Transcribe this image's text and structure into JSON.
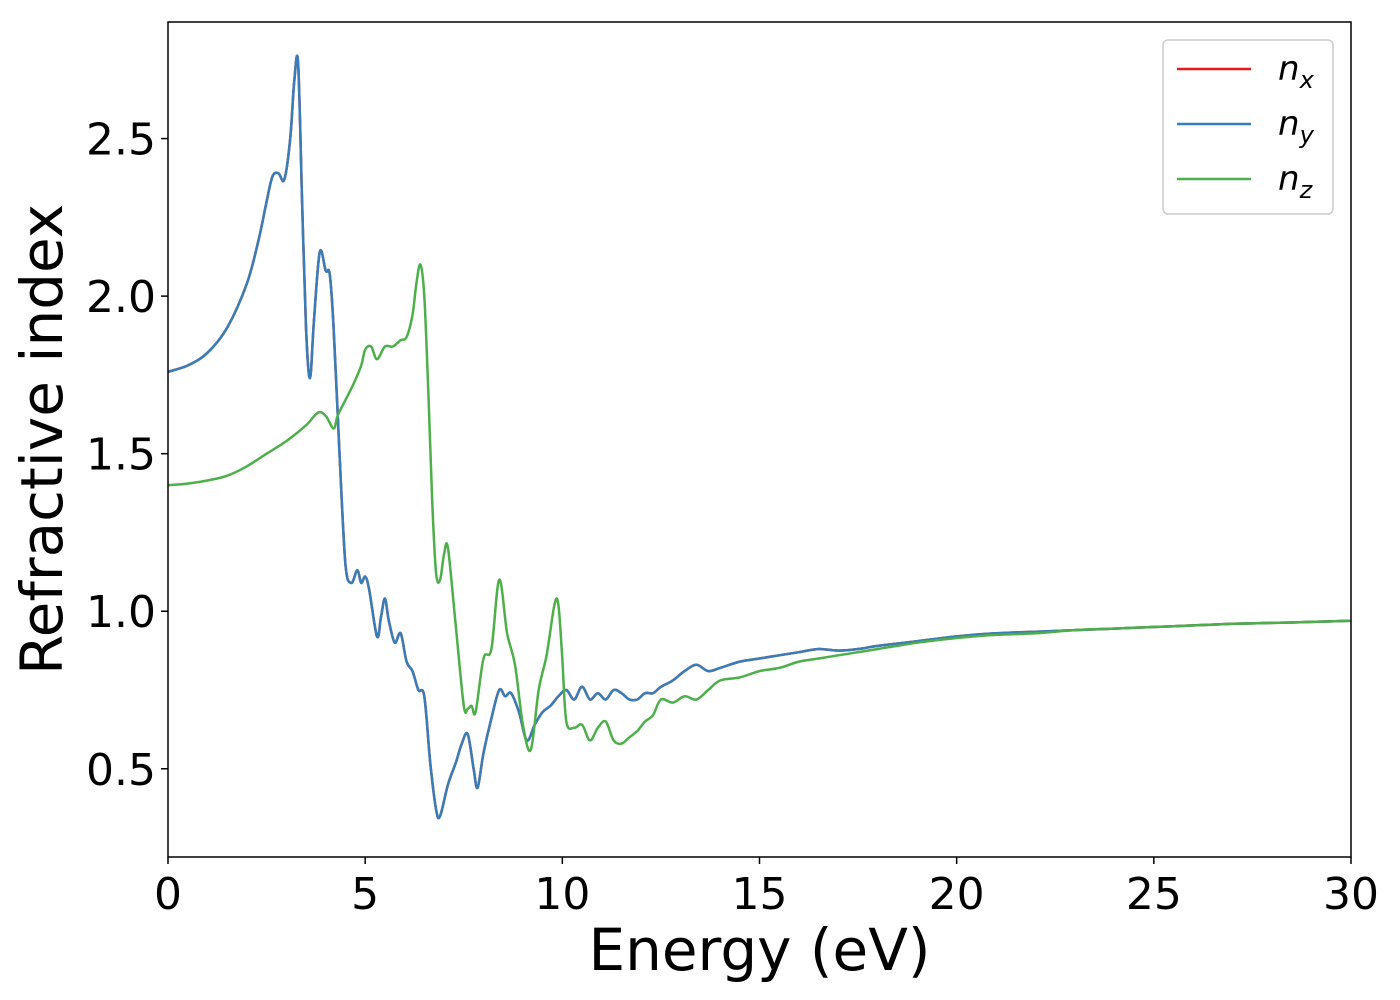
{
  "chart_data": {
    "type": "line",
    "title": "",
    "xlabel": "Energy (eV)",
    "ylabel": "Refractive index",
    "xlim": [
      0,
      30
    ],
    "ylim": [
      0.22,
      2.87
    ],
    "xticks": [
      0,
      5,
      10,
      15,
      20,
      25,
      30
    ],
    "xtick_labels": [
      "0",
      "5",
      "10",
      "15",
      "20",
      "25",
      "30"
    ],
    "yticks": [
      0.5,
      1.0,
      1.5,
      2.0,
      2.5
    ],
    "ytick_labels": [
      "0.5",
      "1.0",
      "1.5",
      "2.0",
      "2.5"
    ],
    "grid": false,
    "legend": {
      "placement": "top-right",
      "entries": [
        {
          "base": "n",
          "sub": "x",
          "color": "#e41a1c"
        },
        {
          "base": "n",
          "sub": "y",
          "color": "#377eb8"
        },
        {
          "base": "n",
          "sub": "z",
          "color": "#4daf4a"
        }
      ]
    },
    "series": [
      {
        "color": "#e41a1c",
        "x": [
          0,
          0.5,
          1.0,
          1.5,
          2.0,
          2.3,
          2.5,
          2.65,
          2.8,
          2.95,
          3.1,
          3.2,
          3.3,
          3.4,
          3.5,
          3.6,
          3.7,
          3.85,
          4.0,
          4.1,
          4.2,
          4.35,
          4.5,
          4.65,
          4.8,
          4.9,
          5.0,
          5.1,
          5.3,
          5.4,
          5.5,
          5.6,
          5.75,
          5.9,
          6.05,
          6.2,
          6.35,
          6.5,
          6.65,
          6.8,
          6.9,
          7.1,
          7.3,
          7.45,
          7.6,
          7.75,
          7.85,
          8.0,
          8.2,
          8.4,
          8.55,
          8.7,
          8.9,
          9.1,
          9.3,
          9.5,
          9.7,
          9.9,
          10.1,
          10.3,
          10.5,
          10.7,
          10.9,
          11.1,
          11.3,
          11.5,
          11.7,
          11.9,
          12.1,
          12.3,
          12.5,
          12.8,
          13.1,
          13.4,
          13.7,
          14.0,
          14.5,
          15.0,
          15.5,
          16.0,
          16.5,
          17.0,
          17.5,
          18.0,
          19.0,
          20.0,
          21.0,
          22.0,
          23.0,
          24.0,
          25.0,
          26.0,
          27.0,
          28.0,
          29.0,
          30.0
        ],
        "y": [
          1.76,
          1.78,
          1.82,
          1.9,
          2.04,
          2.18,
          2.3,
          2.38,
          2.39,
          2.37,
          2.5,
          2.68,
          2.74,
          2.3,
          1.9,
          1.74,
          1.92,
          2.14,
          2.08,
          2.07,
          1.9,
          1.5,
          1.15,
          1.09,
          1.13,
          1.09,
          1.11,
          1.07,
          0.92,
          0.98,
          1.04,
          0.97,
          0.9,
          0.93,
          0.84,
          0.81,
          0.75,
          0.73,
          0.52,
          0.37,
          0.35,
          0.45,
          0.52,
          0.58,
          0.61,
          0.5,
          0.44,
          0.55,
          0.66,
          0.75,
          0.73,
          0.74,
          0.68,
          0.59,
          0.64,
          0.68,
          0.7,
          0.73,
          0.75,
          0.72,
          0.76,
          0.72,
          0.74,
          0.72,
          0.75,
          0.74,
          0.72,
          0.72,
          0.74,
          0.74,
          0.76,
          0.78,
          0.81,
          0.83,
          0.81,
          0.82,
          0.84,
          0.85,
          0.86,
          0.87,
          0.88,
          0.875,
          0.88,
          0.89,
          0.905,
          0.92,
          0.93,
          0.935,
          0.94,
          0.945,
          0.95,
          0.955,
          0.96,
          0.963,
          0.966,
          0.97
        ]
      },
      {
        "color": "#377eb8",
        "x": [
          0,
          0.5,
          1.0,
          1.5,
          2.0,
          2.3,
          2.5,
          2.65,
          2.8,
          2.95,
          3.1,
          3.2,
          3.3,
          3.4,
          3.5,
          3.6,
          3.7,
          3.85,
          4.0,
          4.1,
          4.2,
          4.35,
          4.5,
          4.65,
          4.8,
          4.9,
          5.0,
          5.1,
          5.3,
          5.4,
          5.5,
          5.6,
          5.75,
          5.9,
          6.05,
          6.2,
          6.35,
          6.5,
          6.65,
          6.8,
          6.9,
          7.1,
          7.3,
          7.45,
          7.6,
          7.75,
          7.85,
          8.0,
          8.2,
          8.4,
          8.55,
          8.7,
          8.9,
          9.1,
          9.3,
          9.5,
          9.7,
          9.9,
          10.1,
          10.3,
          10.5,
          10.7,
          10.9,
          11.1,
          11.3,
          11.5,
          11.7,
          11.9,
          12.1,
          12.3,
          12.5,
          12.8,
          13.1,
          13.4,
          13.7,
          14.0,
          14.5,
          15.0,
          15.5,
          16.0,
          16.5,
          17.0,
          17.5,
          18.0,
          19.0,
          20.0,
          21.0,
          22.0,
          23.0,
          24.0,
          25.0,
          26.0,
          27.0,
          28.0,
          29.0,
          30.0
        ],
        "y": [
          1.76,
          1.78,
          1.82,
          1.9,
          2.04,
          2.18,
          2.3,
          2.38,
          2.39,
          2.37,
          2.5,
          2.68,
          2.74,
          2.3,
          1.9,
          1.74,
          1.92,
          2.14,
          2.08,
          2.07,
          1.9,
          1.5,
          1.15,
          1.09,
          1.13,
          1.09,
          1.11,
          1.07,
          0.92,
          0.98,
          1.04,
          0.97,
          0.9,
          0.93,
          0.84,
          0.81,
          0.75,
          0.73,
          0.52,
          0.37,
          0.35,
          0.45,
          0.52,
          0.58,
          0.61,
          0.5,
          0.44,
          0.55,
          0.66,
          0.75,
          0.73,
          0.74,
          0.68,
          0.59,
          0.64,
          0.68,
          0.7,
          0.73,
          0.75,
          0.72,
          0.76,
          0.72,
          0.74,
          0.72,
          0.75,
          0.74,
          0.72,
          0.72,
          0.74,
          0.74,
          0.76,
          0.78,
          0.81,
          0.83,
          0.81,
          0.82,
          0.84,
          0.85,
          0.86,
          0.87,
          0.88,
          0.875,
          0.88,
          0.89,
          0.905,
          0.92,
          0.93,
          0.935,
          0.94,
          0.945,
          0.95,
          0.955,
          0.96,
          0.963,
          0.966,
          0.97
        ]
      },
      {
        "color": "#4daf4a",
        "x": [
          0,
          0.5,
          1.0,
          1.5,
          2.0,
          2.5,
          3.0,
          3.5,
          3.8,
          4.0,
          4.2,
          4.3,
          4.5,
          4.7,
          4.9,
          5.0,
          5.15,
          5.3,
          5.5,
          5.7,
          5.9,
          6.05,
          6.2,
          6.3,
          6.4,
          6.5,
          6.6,
          6.7,
          6.8,
          6.9,
          7.0,
          7.1,
          7.3,
          7.5,
          7.6,
          7.7,
          7.8,
          8.0,
          8.2,
          8.4,
          8.6,
          8.8,
          9.0,
          9.2,
          9.4,
          9.6,
          9.8,
          9.9,
          10.0,
          10.1,
          10.3,
          10.5,
          10.7,
          10.9,
          11.1,
          11.3,
          11.5,
          11.7,
          11.9,
          12.1,
          12.3,
          12.5,
          12.8,
          13.1,
          13.4,
          13.7,
          14.0,
          14.5,
          15.0,
          15.5,
          16.0,
          16.5,
          17.0,
          17.5,
          18.0,
          19.0,
          20.0,
          21.0,
          22.0,
          23.0,
          24.0,
          25.0,
          26.0,
          27.0,
          28.0,
          29.0,
          30.0
        ],
        "y": [
          1.4,
          1.405,
          1.415,
          1.43,
          1.46,
          1.5,
          1.54,
          1.59,
          1.63,
          1.62,
          1.58,
          1.62,
          1.67,
          1.72,
          1.78,
          1.83,
          1.84,
          1.8,
          1.84,
          1.84,
          1.86,
          1.87,
          1.94,
          2.04,
          2.1,
          2.0,
          1.7,
          1.35,
          1.12,
          1.1,
          1.18,
          1.2,
          0.95,
          0.7,
          0.69,
          0.7,
          0.68,
          0.85,
          0.88,
          1.1,
          0.93,
          0.83,
          0.64,
          0.56,
          0.75,
          0.86,
          1.02,
          1.02,
          0.85,
          0.65,
          0.63,
          0.64,
          0.59,
          0.63,
          0.65,
          0.59,
          0.58,
          0.6,
          0.62,
          0.65,
          0.67,
          0.72,
          0.71,
          0.73,
          0.72,
          0.75,
          0.78,
          0.79,
          0.81,
          0.82,
          0.84,
          0.85,
          0.86,
          0.87,
          0.88,
          0.9,
          0.915,
          0.925,
          0.93,
          0.94,
          0.945,
          0.95,
          0.955,
          0.96,
          0.963,
          0.966,
          0.97
        ]
      }
    ]
  }
}
